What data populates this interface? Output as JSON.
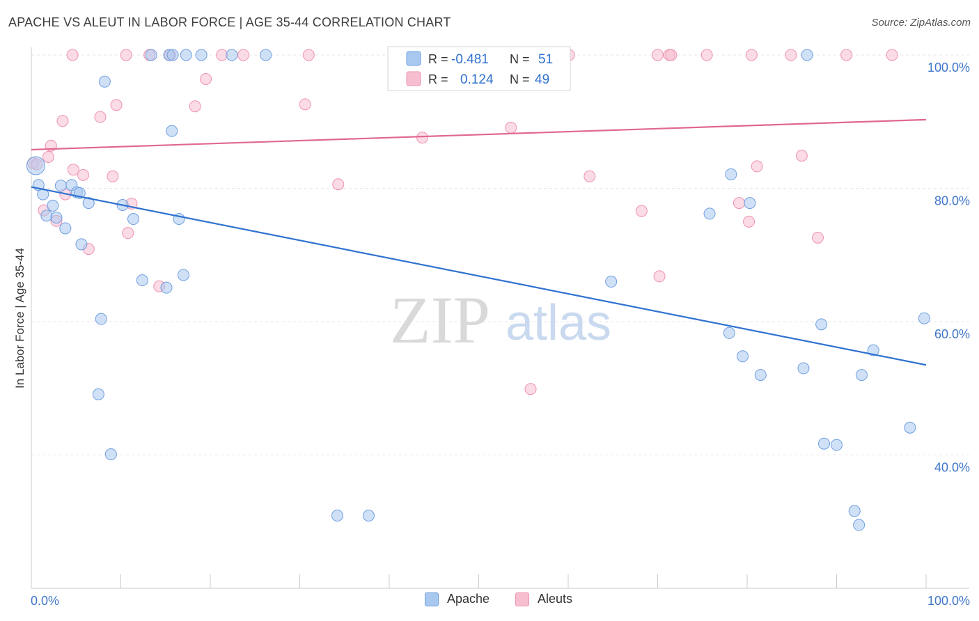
{
  "title": "APACHE VS ALEUT IN LABOR FORCE | AGE 35-44 CORRELATION CHART",
  "source": "Source: ZipAtlas.com",
  "watermark": {
    "zip": "ZIP",
    "atlas": "atlas"
  },
  "colors": {
    "apache_fill": "#a9c8f0",
    "apache_stroke": "#6f9fe0",
    "apache_line": "#2f72d0",
    "aleut_fill": "#f7bed0",
    "aleut_stroke": "#ee93b0",
    "aleut_line": "#e0688f",
    "tick_label": "#3f76c9",
    "grid": "#e6e6e6"
  },
  "legend_top": {
    "apache": {
      "r_label": "R = ",
      "r_value": "-0.481",
      "n_label": "N = ",
      "n_value": "51"
    },
    "aleut": {
      "r_label": "R = ",
      "r_value": "0.124",
      "n_label": "N = ",
      "n_value": "49"
    }
  },
  "legend_bottom": {
    "apache": "Apache",
    "aleut": "Aleuts"
  },
  "chart_data": {
    "type": "scatter",
    "title": "APACHE VS ALEUT IN LABOR FORCE | AGE 35-44 CORRELATION CHART",
    "xlabel": "",
    "ylabel": "In Labor Force | Age 35-44",
    "xlim": [
      0,
      100
    ],
    "ylim": [
      20,
      102
    ],
    "x_tick_labels": [
      {
        "x": 0,
        "label": "0.0%"
      },
      {
        "x": 100,
        "label": "100.0%"
      }
    ],
    "y_tick_labels": [
      {
        "y": 100,
        "label": "100.0%"
      },
      {
        "y": 80,
        "label": "80.0%"
      },
      {
        "y": 60,
        "label": "60.0%"
      },
      {
        "y": 40,
        "label": "40.0%"
      }
    ],
    "grid": true,
    "legend_position": "top-center",
    "series": [
      {
        "name": "Apache",
        "r": -0.481,
        "n": 51,
        "trend": [
          [
            0,
            80.2
          ],
          [
            100,
            53.5
          ]
        ],
        "points": [
          [
            0.5,
            83.4
          ],
          [
            0.8,
            80.5
          ],
          [
            1.3,
            79.1
          ],
          [
            1.7,
            75.9
          ],
          [
            2.4,
            77.4
          ],
          [
            2.8,
            75.6
          ],
          [
            3.3,
            80.4
          ],
          [
            3.8,
            74.0
          ],
          [
            4.5,
            80.5
          ],
          [
            5.1,
            79.4
          ],
          [
            5.4,
            79.3
          ],
          [
            5.6,
            71.6
          ],
          [
            6.4,
            77.8
          ],
          [
            7.5,
            49.1
          ],
          [
            7.8,
            60.4
          ],
          [
            8.2,
            96.0
          ],
          [
            8.9,
            40.1
          ],
          [
            10.2,
            77.5
          ],
          [
            11.4,
            75.4
          ],
          [
            12.4,
            66.2
          ],
          [
            13.4,
            100.0
          ],
          [
            15.1,
            65.1
          ],
          [
            15.4,
            100.0
          ],
          [
            15.8,
            100.0
          ],
          [
            15.7,
            88.6
          ],
          [
            16.5,
            75.4
          ],
          [
            17.0,
            67.0
          ],
          [
            17.3,
            100.0
          ],
          [
            19.0,
            100.0
          ],
          [
            22.4,
            100.0
          ],
          [
            26.2,
            100.0
          ],
          [
            34.2,
            30.9
          ],
          [
            37.7,
            30.9
          ],
          [
            64.8,
            66.0
          ],
          [
            75.8,
            76.2
          ],
          [
            78.0,
            58.3
          ],
          [
            78.2,
            82.1
          ],
          [
            79.5,
            54.8
          ],
          [
            80.3,
            77.8
          ],
          [
            81.5,
            52.0
          ],
          [
            86.3,
            53.0
          ],
          [
            86.7,
            100.0
          ],
          [
            88.3,
            59.6
          ],
          [
            88.6,
            41.7
          ],
          [
            90.0,
            41.5
          ],
          [
            92.0,
            31.6
          ],
          [
            92.5,
            29.5
          ],
          [
            92.8,
            52.0
          ],
          [
            94.1,
            55.7
          ],
          [
            98.2,
            44.1
          ],
          [
            99.8,
            60.5
          ]
        ]
      },
      {
        "name": "Aleuts",
        "r": 0.124,
        "n": 49,
        "trend": [
          [
            0,
            85.8
          ],
          [
            100,
            90.3
          ]
        ],
        "points": [
          [
            0.2,
            83.8
          ],
          [
            0.6,
            83.6
          ],
          [
            1.4,
            76.7
          ],
          [
            1.9,
            84.7
          ],
          [
            2.2,
            86.4
          ],
          [
            2.8,
            75.1
          ],
          [
            3.5,
            90.1
          ],
          [
            3.8,
            79.1
          ],
          [
            4.6,
            100.0
          ],
          [
            4.7,
            82.8
          ],
          [
            5.8,
            82.0
          ],
          [
            6.4,
            70.9
          ],
          [
            7.7,
            90.7
          ],
          [
            9.1,
            81.8
          ],
          [
            9.5,
            92.5
          ],
          [
            10.6,
            100.0
          ],
          [
            10.8,
            73.3
          ],
          [
            11.2,
            77.7
          ],
          [
            13.2,
            100.0
          ],
          [
            14.3,
            65.3
          ],
          [
            15.5,
            100.0
          ],
          [
            18.3,
            92.3
          ],
          [
            19.5,
            96.4
          ],
          [
            21.3,
            100.0
          ],
          [
            23.7,
            100.0
          ],
          [
            30.6,
            92.6
          ],
          [
            31.0,
            100.0
          ],
          [
            34.3,
            80.6
          ],
          [
            43.7,
            87.6
          ],
          [
            52.6,
            100.0
          ],
          [
            53.6,
            89.1
          ],
          [
            55.8,
            49.9
          ],
          [
            56.7,
            100.0
          ],
          [
            60.1,
            100.0
          ],
          [
            62.4,
            81.8
          ],
          [
            68.2,
            76.6
          ],
          [
            70.0,
            100.0
          ],
          [
            70.2,
            66.8
          ],
          [
            71.3,
            100.0
          ],
          [
            71.5,
            100.0
          ],
          [
            75.5,
            100.0
          ],
          [
            79.1,
            77.8
          ],
          [
            80.2,
            75.0
          ],
          [
            80.5,
            100.0
          ],
          [
            81.1,
            83.3
          ],
          [
            84.9,
            100.0
          ],
          [
            86.1,
            84.9
          ],
          [
            87.9,
            72.6
          ],
          [
            91.1,
            100.0
          ]
        ]
      }
    ]
  },
  "extra_aleut_points": [
    [
      96.2,
      100.0
    ]
  ]
}
